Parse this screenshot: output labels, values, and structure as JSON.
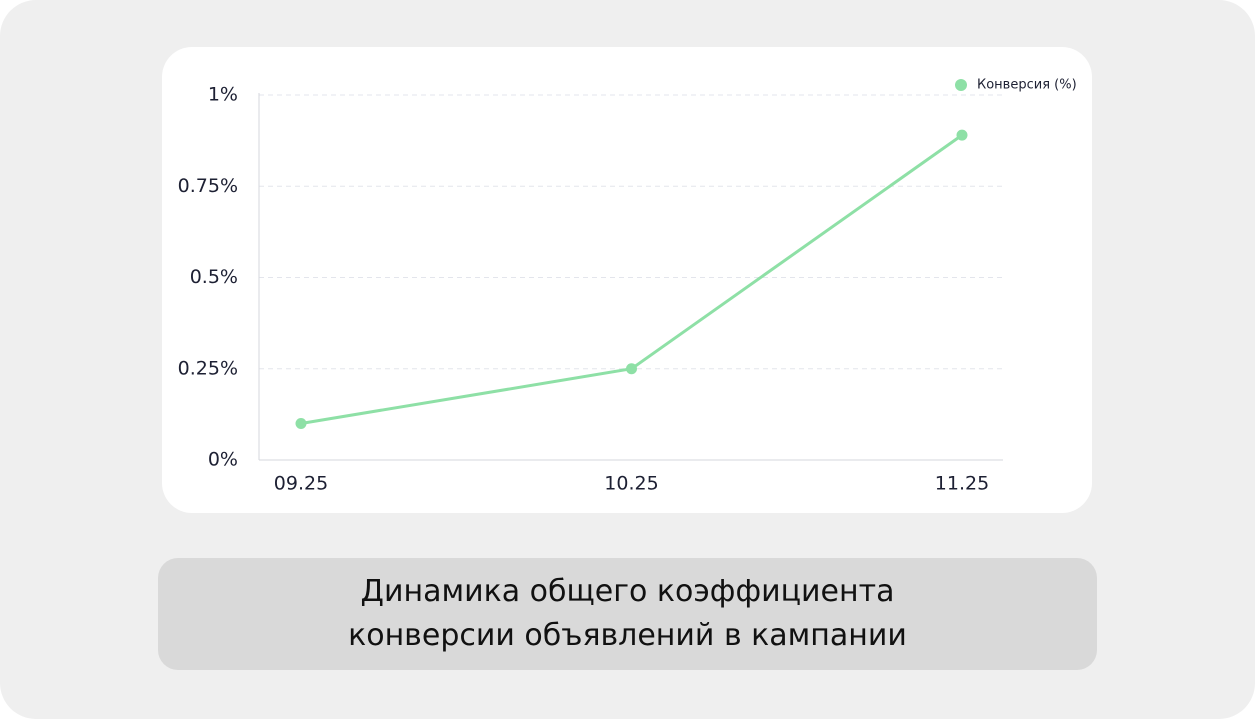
{
  "chart_data": {
    "type": "line",
    "title": "Динамика общего коэффициента конверсии объявлений в кампании",
    "categories": [
      "09.25",
      "10.25",
      "11.25"
    ],
    "series": [
      {
        "name": "Конверсия (%)",
        "color": "#8ee0a6",
        "values": [
          0.1,
          0.25,
          0.89
        ]
      }
    ],
    "ylim": [
      0,
      1
    ],
    "yticks": [
      {
        "value": 0,
        "label": "0%"
      },
      {
        "value": 0.25,
        "label": "0.25%"
      },
      {
        "value": 0.5,
        "label": "0.5%"
      },
      {
        "value": 0.75,
        "label": "0.75%"
      },
      {
        "value": 1,
        "label": "1%"
      }
    ],
    "grid": true,
    "legend": "top-right"
  }
}
